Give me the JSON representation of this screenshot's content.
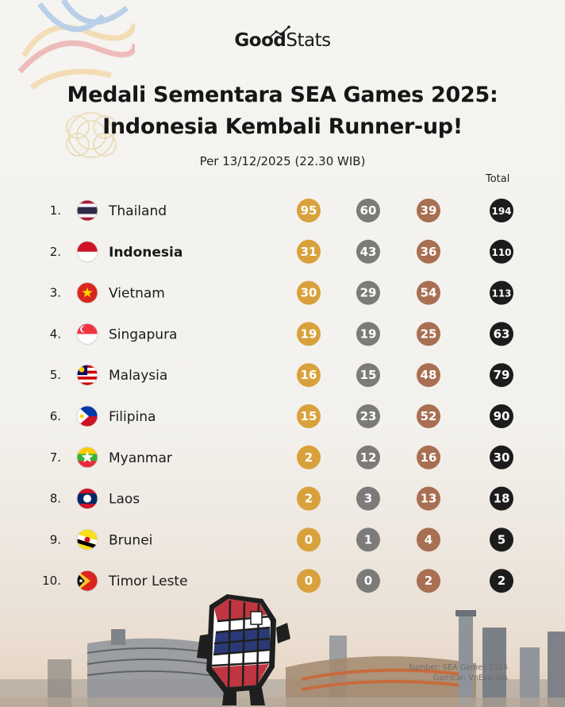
{
  "brand": {
    "good": "Good",
    "stats": "Stats"
  },
  "header": {
    "title_line1": "Medali Sementara SEA Games 2025:",
    "title_line2": "Indonesia Kembali Runner-up!",
    "subtitle": "Per 13/12/2025 (22.30 WIB)"
  },
  "colors": {
    "gold": "#d9a13c",
    "silver": "#7d7b79",
    "bronze": "#a86f52",
    "total": "#1c1c1c"
  },
  "chart_data": {
    "type": "table",
    "column_headers": [
      "Total"
    ],
    "highlight": "Indonesia",
    "rows": [
      {
        "rank": "1.",
        "country": "Thailand",
        "gold": 95,
        "silver": 60,
        "bronze": 39,
        "total": 194
      },
      {
        "rank": "2.",
        "country": "Indonesia",
        "gold": 31,
        "silver": 43,
        "bronze": 36,
        "total": 110
      },
      {
        "rank": "3.",
        "country": "Vietnam",
        "gold": 30,
        "silver": 29,
        "bronze": 54,
        "total": 113
      },
      {
        "rank": "4.",
        "country": "Singapura",
        "gold": 19,
        "silver": 19,
        "bronze": 25,
        "total": 63
      },
      {
        "rank": "5.",
        "country": "Malaysia",
        "gold": 16,
        "silver": 15,
        "bronze": 48,
        "total": 79
      },
      {
        "rank": "6.",
        "country": "Filipina",
        "gold": 15,
        "silver": 23,
        "bronze": 52,
        "total": 90
      },
      {
        "rank": "7.",
        "country": "Myanmar",
        "gold": 2,
        "silver": 12,
        "bronze": 16,
        "total": 30
      },
      {
        "rank": "8.",
        "country": "Laos",
        "gold": 2,
        "silver": 3,
        "bronze": 13,
        "total": 18
      },
      {
        "rank": "9.",
        "country": "Brunei",
        "gold": 0,
        "silver": 1,
        "bronze": 4,
        "total": 5
      },
      {
        "rank": "10.",
        "country": "Timor Leste",
        "gold": 0,
        "silver": 0,
        "bronze": 2,
        "total": 2
      }
    ]
  },
  "footer": {
    "source": "Sumber: SEA Games 2025",
    "image_credit": "Gambar: VnExpress"
  }
}
